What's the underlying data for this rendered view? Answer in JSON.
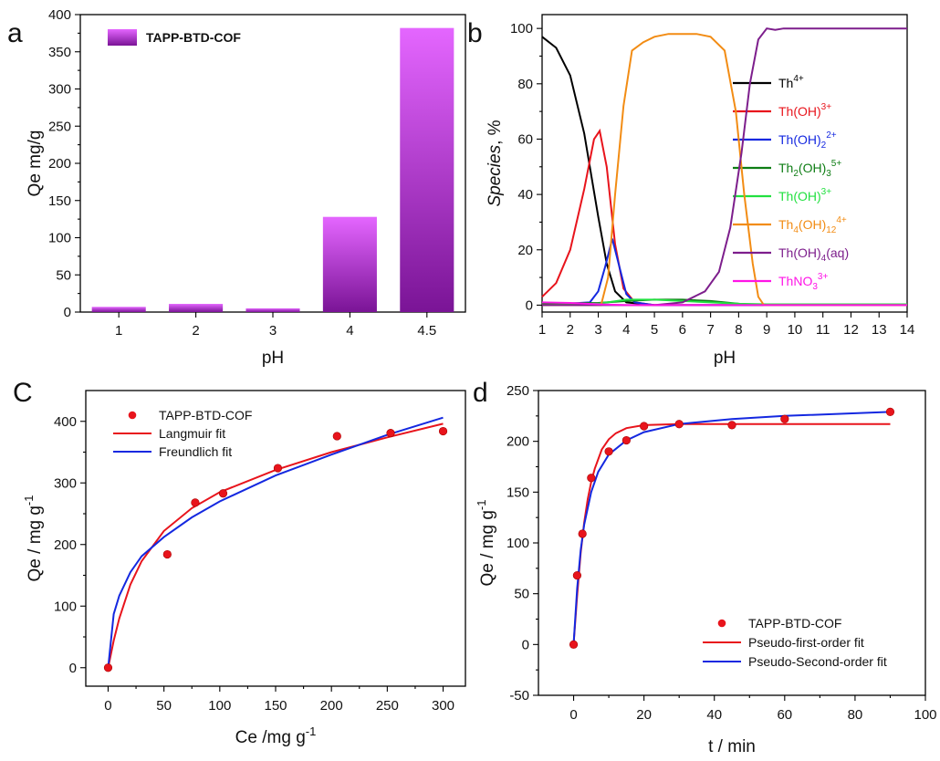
{
  "chart_data": [
    {
      "panel": "a",
      "type": "bar",
      "categories": [
        "1",
        "2",
        "3",
        "4",
        "4.5"
      ],
      "values": [
        7,
        11,
        5,
        128,
        382
      ],
      "series": [
        {
          "name": "TAPP-BTD-COF",
          "values": [
            7,
            11,
            5,
            128,
            382
          ]
        }
      ],
      "xlabel": "pH",
      "ylabel": "Qe mg/g",
      "ylim": [
        0,
        400
      ],
      "yticks": [
        "0",
        "50",
        "100",
        "150",
        "200",
        "250",
        "300",
        "350",
        "400"
      ],
      "legend_position": "top-left",
      "colors": {
        "bar_top": "#e466ff",
        "bar_bottom": "#7a1496"
      }
    },
    {
      "panel": "b",
      "type": "line",
      "xlabel": "pH",
      "ylabel": "Species, %",
      "xlim": [
        1,
        14
      ],
      "ylim": [
        0,
        100
      ],
      "xticks": [
        "1",
        "2",
        "3",
        "4",
        "5",
        "6",
        "7",
        "8",
        "9",
        "10",
        "11",
        "12",
        "13",
        "14"
      ],
      "yticks": [
        "0",
        "20",
        "40",
        "60",
        "80",
        "100"
      ],
      "legend_position": "right",
      "series": [
        {
          "name": "Th4+",
          "label_base": "Th",
          "label_sup": "4+",
          "color": "#000000",
          "points": [
            [
              1,
              97
            ],
            [
              1.5,
              93
            ],
            [
              2,
              83
            ],
            [
              2.5,
              62
            ],
            [
              3,
              32
            ],
            [
              3.3,
              15
            ],
            [
              3.6,
              5
            ],
            [
              4,
              1
            ],
            [
              5,
              0
            ],
            [
              14,
              0
            ]
          ]
        },
        {
          "name": "Th(OH)3+",
          "label_base": "Th(OH)",
          "label_sup": "3+",
          "color": "#e8141c",
          "points": [
            [
              1,
              3
            ],
            [
              1.5,
              8
            ],
            [
              2,
              20
            ],
            [
              2.5,
              42
            ],
            [
              2.85,
              60
            ],
            [
              3.05,
              63
            ],
            [
              3.3,
              50
            ],
            [
              3.6,
              22
            ],
            [
              3.9,
              6
            ],
            [
              4.3,
              1
            ],
            [
              5,
              0
            ],
            [
              14,
              0
            ]
          ]
        },
        {
          "name": "Th(OH)2 2+",
          "label_base": "Th(OH)",
          "label_sub": "2",
          "label_sup": "2+",
          "color": "#1428e0",
          "points": [
            [
              1,
              0
            ],
            [
              2.7,
              1
            ],
            [
              3,
              5
            ],
            [
              3.25,
              14
            ],
            [
              3.5,
              24
            ],
            [
              3.75,
              14
            ],
            [
              4,
              4
            ],
            [
              4.3,
              1
            ],
            [
              5,
              0
            ],
            [
              14,
              0
            ]
          ]
        },
        {
          "name": "Th2(OH)3 5+",
          "label_base": "Th",
          "label_sub": "2",
          "label_mid": "(OH)",
          "label_sub2": "3",
          "label_sup": "5+",
          "color": "#0e7d14",
          "points": [
            [
              1,
              0.5
            ],
            [
              3,
              0.8
            ],
            [
              4,
              1.5
            ],
            [
              5,
              2
            ],
            [
              6,
              2
            ],
            [
              7,
              1.5
            ],
            [
              8,
              0.5
            ],
            [
              8.6,
              0
            ],
            [
              14,
              0
            ]
          ]
        },
        {
          "name": "Th(OH)3+",
          "label_base": "Th(OH)",
          "label_sup": "3+",
          "color": "#22e040",
          "points": [
            [
              1,
              0
            ],
            [
              3,
              0.5
            ],
            [
              4,
              2
            ],
            [
              5,
              2
            ],
            [
              6,
              1.5
            ],
            [
              7,
              1
            ],
            [
              8,
              0.5
            ],
            [
              9,
              0.3
            ],
            [
              14,
              0.3
            ]
          ]
        },
        {
          "name": "Th4(OH)12 4+",
          "label_base": "Th",
          "label_sub": "4",
          "label_mid": "(OH)",
          "label_sub2": "12",
          "label_sup": "4+",
          "color": "#f28c14",
          "points": [
            [
              1,
              0
            ],
            [
              3.1,
              0
            ],
            [
              3.35,
              10
            ],
            [
              3.6,
              40
            ],
            [
              3.9,
              72
            ],
            [
              4.2,
              92
            ],
            [
              4.6,
              95
            ],
            [
              5,
              97
            ],
            [
              5.5,
              98
            ],
            [
              6.5,
              98
            ],
            [
              7,
              97
            ],
            [
              7.5,
              92
            ],
            [
              7.9,
              70
            ],
            [
              8.2,
              40
            ],
            [
              8.5,
              15
            ],
            [
              8.7,
              3
            ],
            [
              8.9,
              0
            ],
            [
              14,
              0
            ]
          ]
        },
        {
          "name": "Th(OH)4(aq)",
          "label_base": "Th(OH)",
          "label_sub": "4",
          "label_mid": "(aq)",
          "color": "#7d1e8c",
          "points": [
            [
              1,
              0
            ],
            [
              5,
              0
            ],
            [
              6,
              1
            ],
            [
              6.8,
              5
            ],
            [
              7.3,
              12
            ],
            [
              7.7,
              28
            ],
            [
              8.1,
              55
            ],
            [
              8.4,
              80
            ],
            [
              8.7,
              96
            ],
            [
              9,
              100
            ],
            [
              9.3,
              99.5
            ],
            [
              9.6,
              100
            ],
            [
              14,
              100
            ]
          ]
        },
        {
          "name": "ThNO3 3+",
          "label_base": "ThNO",
          "label_sub": "3",
          "label_sup": "3+",
          "color": "#ff14e6",
          "points": [
            [
              1,
              1
            ],
            [
              2,
              0.8
            ],
            [
              3,
              0.3
            ],
            [
              4,
              0
            ],
            [
              14,
              0
            ]
          ]
        }
      ]
    },
    {
      "panel": "C",
      "type": "scatter",
      "xlabel": "Ce /mg g",
      "xlabel_sup": "-1",
      "ylabel": "Qe / mg g",
      "ylabel_sup": "-1",
      "xlim": [
        -20,
        320
      ],
      "ylim": [
        -30,
        450
      ],
      "xticks": [
        "0",
        "50",
        "100",
        "150",
        "200",
        "250",
        "300"
      ],
      "yticks": [
        "0",
        "100",
        "200",
        "300",
        "400"
      ],
      "legend_position": "top-left",
      "series": [
        {
          "name": "TAPP-BTD-COF",
          "kind": "points",
          "color": "#e8141c",
          "points": [
            [
              0,
              0
            ],
            [
              53,
              184
            ],
            [
              78,
              268
            ],
            [
              103,
              283
            ],
            [
              152,
              324
            ],
            [
              205,
              376
            ],
            [
              253,
              381
            ],
            [
              300,
              384
            ]
          ]
        },
        {
          "name": "Langmuir fit",
          "kind": "line",
          "color": "#e8141c",
          "points": [
            [
              0,
              0
            ],
            [
              5,
              44
            ],
            [
              10,
              80
            ],
            [
              20,
              135
            ],
            [
              30,
              173
            ],
            [
              50,
              222
            ],
            [
              75,
              259
            ],
            [
              100,
              285
            ],
            [
              150,
              321
            ],
            [
              200,
              350
            ],
            [
              250,
              374
            ],
            [
              300,
              396
            ]
          ]
        },
        {
          "name": "Freundlich fit",
          "kind": "line",
          "color": "#1428e0",
          "points": [
            [
              0,
              0
            ],
            [
              5,
              87
            ],
            [
              10,
              117
            ],
            [
              20,
              155
            ],
            [
              30,
              181
            ],
            [
              50,
              212
            ],
            [
              75,
              244
            ],
            [
              100,
              270
            ],
            [
              150,
              312
            ],
            [
              200,
              346
            ],
            [
              250,
              378
            ],
            [
              300,
              406
            ]
          ]
        }
      ]
    },
    {
      "panel": "d",
      "type": "scatter",
      "xlabel": "t / min",
      "ylabel": "Qe / mg g",
      "ylabel_sup": "-1",
      "xlim": [
        -10,
        100
      ],
      "ylim": [
        -50,
        250
      ],
      "xticks": [
        "0",
        "20",
        "40",
        "60",
        "80",
        "100"
      ],
      "yticks": [
        "-50",
        "0",
        "50",
        "100",
        "150",
        "200",
        "250"
      ],
      "legend_position": "bottom-right",
      "series": [
        {
          "name": "TAPP-BTD-COF",
          "kind": "points",
          "color": "#e8141c",
          "points": [
            [
              0,
              0
            ],
            [
              1,
              68
            ],
            [
              2.5,
              109
            ],
            [
              5,
              164
            ],
            [
              10,
              190
            ],
            [
              15,
              201
            ],
            [
              20,
              215
            ],
            [
              30,
              217
            ],
            [
              45,
              216
            ],
            [
              60,
              222
            ],
            [
              90,
              229
            ]
          ]
        },
        {
          "name": "Pseudo-first-order fit",
          "kind": "line",
          "color": "#e8141c",
          "points": [
            [
              0,
              0
            ],
            [
              1,
              48
            ],
            [
              2,
              90
            ],
            [
              3,
              120
            ],
            [
              4,
              143
            ],
            [
              5,
              160
            ],
            [
              6,
              173
            ],
            [
              8,
              192
            ],
            [
              10,
              202
            ],
            [
              12,
              208
            ],
            [
              15,
              213
            ],
            [
              20,
              216
            ],
            [
              30,
              217
            ],
            [
              90,
              217
            ]
          ]
        },
        {
          "name": "Pseudo-Second-order fit",
          "kind": "line",
          "color": "#1428e0",
          "points": [
            [
              0,
              0
            ],
            [
              1,
              55
            ],
            [
              2,
              93
            ],
            [
              3,
              118
            ],
            [
              5,
              150
            ],
            [
              7,
              170
            ],
            [
              10,
              187
            ],
            [
              15,
              201
            ],
            [
              20,
              209
            ],
            [
              30,
              217
            ],
            [
              45,
              222
            ],
            [
              60,
              225
            ],
            [
              90,
              229
            ]
          ]
        }
      ]
    }
  ]
}
